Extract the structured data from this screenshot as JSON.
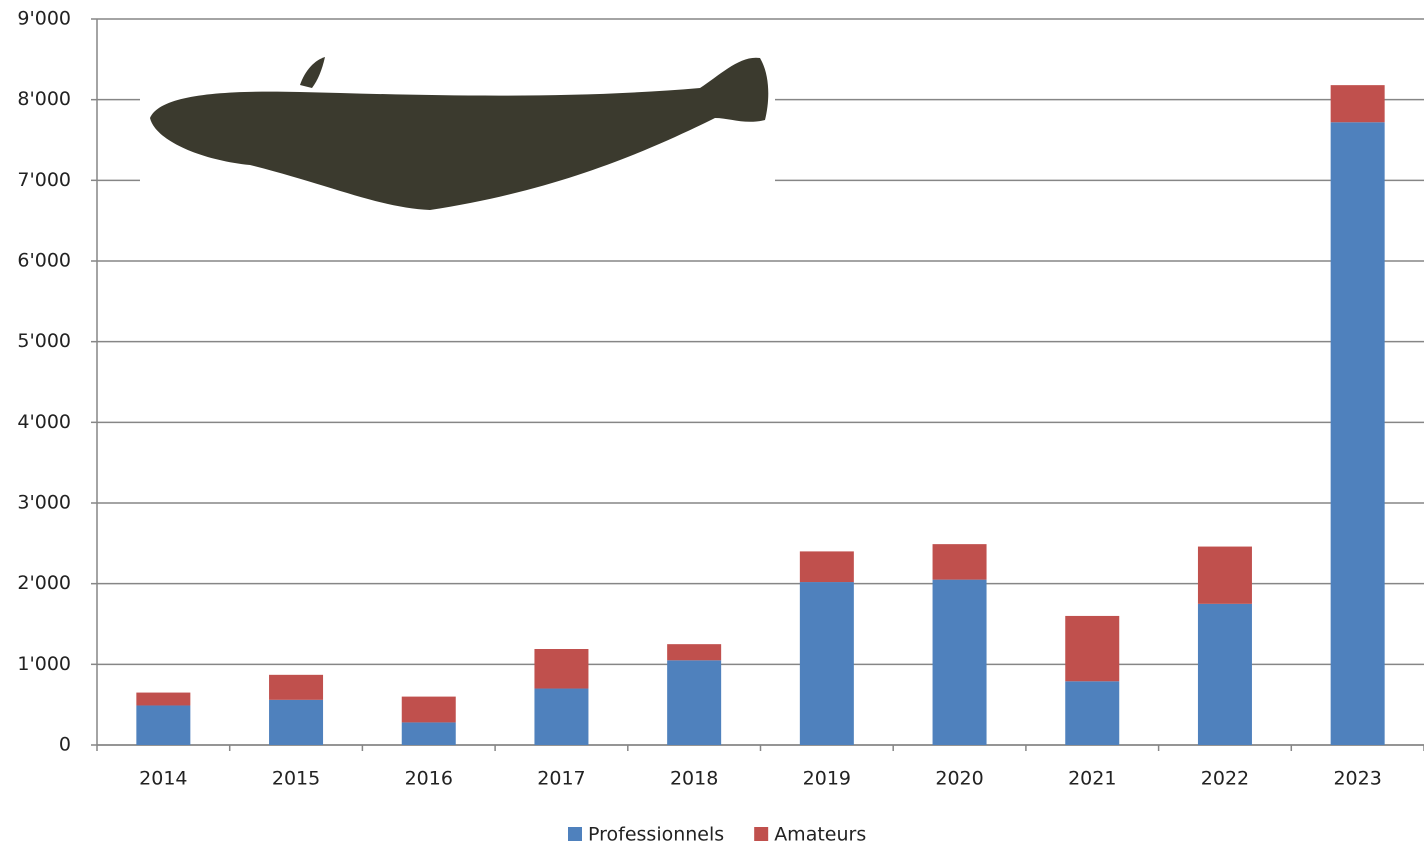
{
  "chart_data": {
    "type": "stacked_bar",
    "categories": [
      "2014",
      "2015",
      "2016",
      "2017",
      "2018",
      "2019",
      "2020",
      "2021",
      "2022",
      "2023"
    ],
    "series": [
      {
        "name": "Professionnels",
        "color": "#4f81bd",
        "values": [
          490,
          560,
          280,
          700,
          1050,
          2020,
          2050,
          790,
          1750,
          7720
        ]
      },
      {
        "name": "Amateurs",
        "color": "#c0504d",
        "values": [
          160,
          310,
          320,
          490,
          200,
          380,
          440,
          810,
          710,
          460
        ]
      }
    ],
    "ylim": [
      0,
      9000
    ],
    "yticks": [
      0,
      {
        "value": 1000,
        "label": "1'000"
      },
      {
        "value": 2000,
        "label": "2'000"
      },
      {
        "value": 3000,
        "label": "3'000"
      },
      {
        "value": 4000,
        "label": "4'000"
      },
      {
        "value": 5000,
        "label": "5'000"
      },
      {
        "value": 6000,
        "label": "6'000"
      },
      {
        "value": 7000,
        "label": "7'000"
      },
      {
        "value": 8000,
        "label": "8'000"
      },
      {
        "value": 9000,
        "label": "9'000"
      }
    ],
    "grid": true,
    "legend": "bottom"
  }
}
